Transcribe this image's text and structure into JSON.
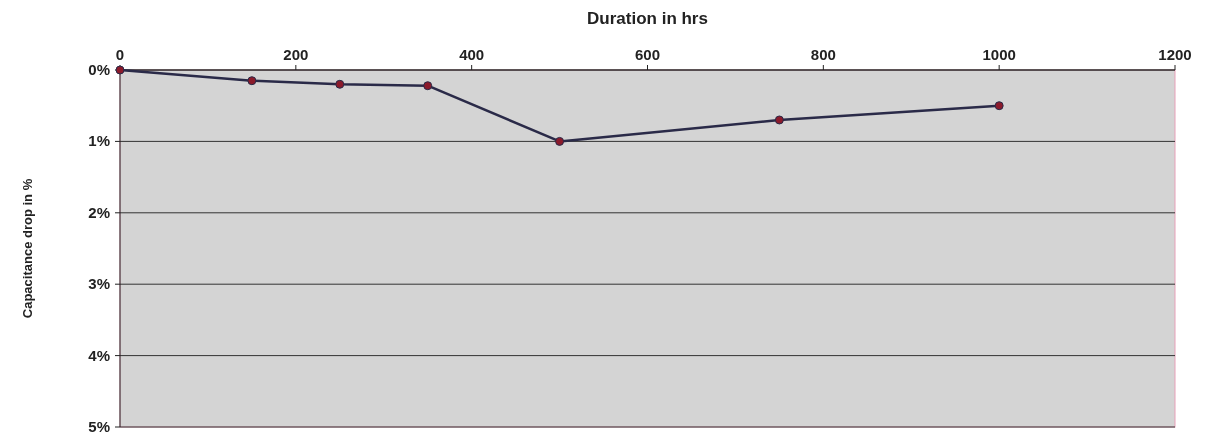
{
  "chart_data": {
    "type": "line",
    "xlabel": "Duration in hrs",
    "ylabel": "Capacitance drop in %",
    "x": [
      0,
      150,
      250,
      350,
      500,
      750,
      1000
    ],
    "series": [
      {
        "color": "#2a2a48",
        "values": [
          0,
          0.15,
          0.2,
          0.22,
          1.0,
          0.7,
          0.5
        ]
      }
    ],
    "xlim": [
      0,
      1200
    ],
    "xticks": [
      0,
      200,
      400,
      600,
      800,
      1000,
      1200
    ],
    "ylim": [
      5,
      0
    ],
    "yticks": [
      {
        "value": 0,
        "label": "0%"
      },
      {
        "value": 1,
        "label": "1%"
      },
      {
        "value": 2,
        "label": "2%"
      },
      {
        "value": 3,
        "label": "3%"
      },
      {
        "value": 4,
        "label": "4%"
      },
      {
        "value": 5,
        "label": "5%"
      }
    ],
    "grid": "y",
    "marker": "circle",
    "line_style": "solid"
  }
}
